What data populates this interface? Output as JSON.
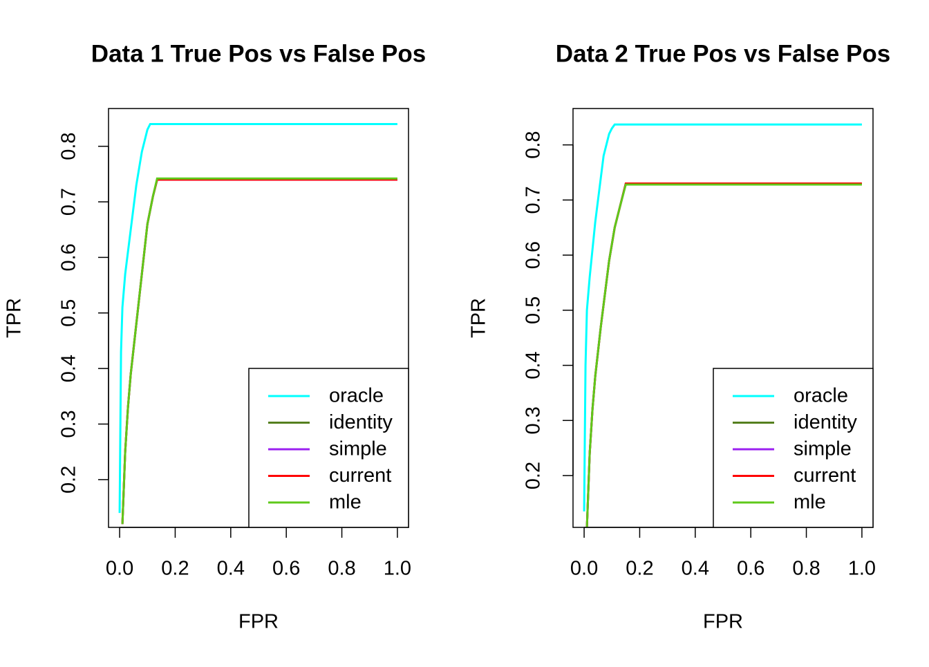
{
  "chart_data": [
    {
      "type": "line",
      "title": "Data 1 True Pos vs False Pos",
      "x_label": "FPR",
      "y_label": "TPR",
      "xlim": [
        -0.04,
        1.04
      ],
      "ylim": [
        0.114,
        0.868
      ],
      "xticks": [
        {
          "value": 0,
          "label": "0.0"
        },
        0.2,
        0.4,
        0.6,
        0.8,
        {
          "value": 1,
          "label": "1.0"
        }
      ],
      "yticks": [
        0.2,
        0.3,
        0.4,
        0.5,
        0.6,
        0.7,
        0.8
      ],
      "legend": "bottom-right",
      "series": [
        {
          "name": "oracle",
          "color": "#00ffff",
          "x": [
            0,
            0.005,
            0.01,
            0.02,
            0.03,
            0.04,
            0.05,
            0.06,
            0.07,
            0.08,
            0.09,
            0.1,
            0.11,
            1
          ],
          "values": [
            0.14,
            0.43,
            0.51,
            0.57,
            0.61,
            0.65,
            0.69,
            0.73,
            0.76,
            0.79,
            0.81,
            0.83,
            0.84,
            0.84
          ]
        },
        {
          "name": "identity",
          "color": "#557f1f",
          "x": [
            0.01,
            0.02,
            0.03,
            0.04,
            0.06,
            0.08,
            0.1,
            0.12,
            0.135,
            1
          ],
          "values": [
            0.12,
            0.25,
            0.33,
            0.39,
            0.48,
            0.57,
            0.66,
            0.71,
            0.74,
            0.74
          ]
        },
        {
          "name": "simple",
          "color": "#9b20f0",
          "x": [
            0.01,
            0.02,
            0.03,
            0.04,
            0.06,
            0.08,
            0.1,
            0.12,
            0.135,
            1
          ],
          "values": [
            0.12,
            0.25,
            0.33,
            0.39,
            0.48,
            0.57,
            0.66,
            0.71,
            0.74,
            0.74
          ]
        },
        {
          "name": "current",
          "color": "#ff0000",
          "x": [
            0.01,
            0.02,
            0.03,
            0.04,
            0.06,
            0.08,
            0.1,
            0.12,
            0.135,
            1
          ],
          "values": [
            0.12,
            0.25,
            0.33,
            0.39,
            0.48,
            0.57,
            0.66,
            0.71,
            0.74,
            0.74
          ]
        },
        {
          "name": "mle",
          "color": "#5fc91a",
          "x": [
            0.01,
            0.02,
            0.03,
            0.04,
            0.06,
            0.08,
            0.1,
            0.12,
            0.135,
            1
          ],
          "values": [
            0.12,
            0.25,
            0.33,
            0.39,
            0.48,
            0.57,
            0.66,
            0.71,
            0.742,
            0.742
          ]
        }
      ]
    },
    {
      "type": "line",
      "title": "Data 2 True Pos vs False Pos",
      "x_label": "FPR",
      "y_label": "TPR",
      "xlim": [
        -0.04,
        1.04
      ],
      "ylim": [
        0.106,
        0.866
      ],
      "xticks": [
        {
          "value": 0,
          "label": "0.0"
        },
        0.2,
        0.4,
        0.6,
        0.8,
        {
          "value": 1,
          "label": "1.0"
        }
      ],
      "yticks": [
        0.2,
        0.3,
        0.4,
        0.5,
        0.6,
        0.7,
        0.8
      ],
      "legend": "bottom-right",
      "series": [
        {
          "name": "oracle",
          "color": "#00ffff",
          "x": [
            0,
            0.005,
            0.01,
            0.02,
            0.03,
            0.04,
            0.05,
            0.06,
            0.07,
            0.08,
            0.09,
            0.1,
            0.11,
            1
          ],
          "values": [
            0.135,
            0.4,
            0.5,
            0.56,
            0.61,
            0.66,
            0.7,
            0.74,
            0.78,
            0.8,
            0.82,
            0.83,
            0.837,
            0.837
          ]
        },
        {
          "name": "identity",
          "color": "#557f1f",
          "x": [
            0.01,
            0.02,
            0.03,
            0.04,
            0.06,
            0.08,
            0.09,
            0.11,
            0.13,
            0.15,
            1
          ],
          "values": [
            0.106,
            0.24,
            0.32,
            0.38,
            0.47,
            0.55,
            0.59,
            0.65,
            0.69,
            0.73,
            0.73
          ]
        },
        {
          "name": "simple",
          "color": "#9b20f0",
          "x": [
            0.01,
            0.02,
            0.03,
            0.04,
            0.06,
            0.08,
            0.09,
            0.11,
            0.13,
            0.15,
            1
          ],
          "values": [
            0.106,
            0.24,
            0.32,
            0.38,
            0.47,
            0.55,
            0.59,
            0.65,
            0.69,
            0.73,
            0.73
          ]
        },
        {
          "name": "current",
          "color": "#ff0000",
          "x": [
            0.01,
            0.02,
            0.03,
            0.04,
            0.06,
            0.08,
            0.09,
            0.11,
            0.13,
            0.15,
            1
          ],
          "values": [
            0.106,
            0.24,
            0.32,
            0.38,
            0.47,
            0.55,
            0.59,
            0.65,
            0.69,
            0.73,
            0.73
          ]
        },
        {
          "name": "mle",
          "color": "#5fc91a",
          "x": [
            0.01,
            0.02,
            0.03,
            0.04,
            0.06,
            0.08,
            0.09,
            0.11,
            0.13,
            0.15,
            1
          ],
          "values": [
            0.106,
            0.24,
            0.32,
            0.38,
            0.47,
            0.55,
            0.59,
            0.65,
            0.69,
            0.728,
            0.728
          ]
        }
      ]
    }
  ]
}
